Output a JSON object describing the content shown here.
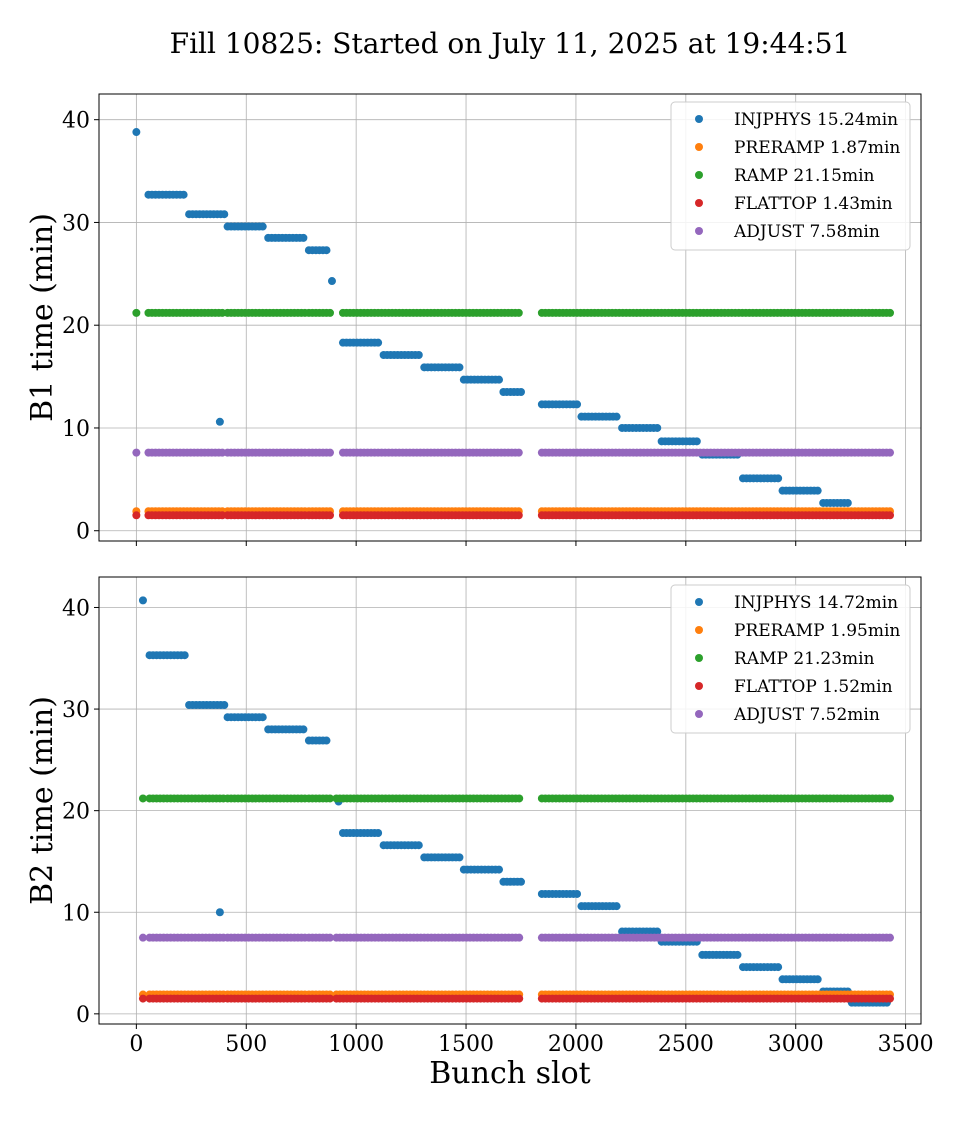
{
  "figure": {
    "title": "Fill 10825: Started on July 11, 2025 at 19:44:51",
    "xlabel": "Bunch slot"
  },
  "colors": {
    "INJPHYS": "#1f77b4",
    "PRERAMP": "#ff7f0e",
    "RAMP": "#2ca02c",
    "FLATTOP": "#d62728",
    "ADJUST": "#9467bd"
  },
  "chart_data": [
    {
      "type": "scatter",
      "ylabel": "B1 time (min)",
      "xlim": [
        -170,
        3570
      ],
      "ylim": [
        -1,
        42.5
      ],
      "xticks": [
        0,
        500,
        1000,
        1500,
        2000,
        2500,
        3000,
        3500
      ],
      "yticks": [
        0,
        10,
        20,
        30,
        40
      ],
      "xtick_labels_shown": false,
      "grid": true,
      "legend_position": "top-right",
      "series": [
        {
          "name": "INJPHYS 15.24min",
          "key": "INJPHYS",
          "points": [
            [
              0,
              38.8
            ],
            [
              380,
              10.6
            ],
            [
              890,
              24.3
            ]
          ],
          "runs": [
            [
              55,
              230,
              32.7
            ],
            [
              240,
              400,
              30.8
            ],
            [
              415,
              590,
              29.6
            ],
            [
              600,
              770,
              28.5
            ],
            [
              785,
              880,
              27.3
            ],
            [
              940,
              1110,
              18.3
            ],
            [
              1125,
              1290,
              17.1
            ],
            [
              1310,
              1475,
              15.9
            ],
            [
              1490,
              1660,
              14.7
            ],
            [
              1670,
              1750,
              13.5
            ],
            [
              1845,
              2010,
              12.3
            ],
            [
              2025,
              2195,
              11.1
            ],
            [
              2210,
              2380,
              10.0
            ],
            [
              2390,
              2560,
              8.7
            ],
            [
              2575,
              2745,
              7.4
            ],
            [
              2760,
              2925,
              5.1
            ],
            [
              2940,
              3110,
              3.9
            ],
            [
              3125,
              3245,
              2.7
            ]
          ]
        },
        {
          "name": "PRERAMP 1.87min",
          "key": "PRERAMP",
          "points": [
            [
              0,
              1.9
            ]
          ],
          "runs": [
            [
              55,
              400,
              1.9
            ],
            [
              415,
              770,
              1.9
            ],
            [
              785,
              890,
              1.9
            ],
            [
              940,
              1750,
              1.9
            ],
            [
              1845,
              3430,
              1.9
            ]
          ]
        },
        {
          "name": "RAMP 21.15min",
          "key": "RAMP",
          "points": [
            [
              0,
              21.2
            ]
          ],
          "runs": [
            [
              55,
              400,
              21.2
            ],
            [
              415,
              770,
              21.2
            ],
            [
              785,
              890,
              21.2
            ],
            [
              940,
              1750,
              21.2
            ],
            [
              1845,
              3430,
              21.2
            ]
          ]
        },
        {
          "name": "FLATTOP 1.43min",
          "key": "FLATTOP",
          "points": [
            [
              0,
              1.5
            ]
          ],
          "runs": [
            [
              55,
              400,
              1.5
            ],
            [
              415,
              770,
              1.5
            ],
            [
              785,
              890,
              1.5
            ],
            [
              940,
              1750,
              1.5
            ],
            [
              1845,
              3430,
              1.5
            ]
          ]
        },
        {
          "name": "ADJUST 7.58min",
          "key": "ADJUST",
          "points": [
            [
              0,
              7.6
            ]
          ],
          "runs": [
            [
              55,
              400,
              7.6
            ],
            [
              415,
              770,
              7.6
            ],
            [
              785,
              890,
              7.6
            ],
            [
              940,
              1750,
              7.6
            ],
            [
              1845,
              3430,
              7.6
            ]
          ]
        }
      ]
    },
    {
      "type": "scatter",
      "ylabel": "B2 time (min)",
      "xlim": [
        -170,
        3570
      ],
      "ylim": [
        -1,
        43
      ],
      "xticks": [
        0,
        500,
        1000,
        1500,
        2000,
        2500,
        3000,
        3500
      ],
      "yticks": [
        0,
        10,
        20,
        30,
        40
      ],
      "xtick_labels_shown": true,
      "grid": true,
      "legend_position": "top-right",
      "series": [
        {
          "name": "INJPHYS 14.72min",
          "key": "INJPHYS",
          "points": [
            [
              30,
              40.7
            ],
            [
              380,
              10.0
            ],
            [
              920,
              20.9
            ]
          ],
          "runs": [
            [
              60,
              230,
              35.3
            ],
            [
              240,
              400,
              30.4
            ],
            [
              415,
              590,
              29.2
            ],
            [
              600,
              770,
              28.0
            ],
            [
              785,
              880,
              26.9
            ],
            [
              940,
              1110,
              17.8
            ],
            [
              1125,
              1290,
              16.6
            ],
            [
              1310,
              1475,
              15.4
            ],
            [
              1490,
              1660,
              14.2
            ],
            [
              1670,
              1750,
              13.0
            ],
            [
              1845,
              2010,
              11.8
            ],
            [
              2025,
              2195,
              10.6
            ],
            [
              2210,
              2380,
              8.1
            ],
            [
              2390,
              2560,
              7.1
            ],
            [
              2575,
              2745,
              5.8
            ],
            [
              2760,
              2925,
              4.6
            ],
            [
              2940,
              3110,
              3.4
            ],
            [
              3125,
              3245,
              2.2
            ],
            [
              3255,
              3430,
              1.1
            ]
          ]
        },
        {
          "name": "PRERAMP 1.95min",
          "key": "PRERAMP",
          "points": [
            [
              30,
              1.9
            ]
          ],
          "runs": [
            [
              60,
              400,
              1.9
            ],
            [
              415,
              770,
              1.9
            ],
            [
              785,
              890,
              1.9
            ],
            [
              910,
              1750,
              1.9
            ],
            [
              1845,
              3430,
              1.9
            ]
          ]
        },
        {
          "name": "RAMP 21.23min",
          "key": "RAMP",
          "points": [
            [
              30,
              21.2
            ]
          ],
          "runs": [
            [
              60,
              400,
              21.2
            ],
            [
              415,
              770,
              21.2
            ],
            [
              785,
              890,
              21.2
            ],
            [
              910,
              1750,
              21.2
            ],
            [
              1845,
              3430,
              21.2
            ]
          ]
        },
        {
          "name": "FLATTOP 1.52min",
          "key": "FLATTOP",
          "points": [
            [
              30,
              1.5
            ]
          ],
          "runs": [
            [
              60,
              400,
              1.5
            ],
            [
              415,
              770,
              1.5
            ],
            [
              785,
              890,
              1.5
            ],
            [
              910,
              1750,
              1.5
            ],
            [
              1845,
              3430,
              1.5
            ]
          ]
        },
        {
          "name": "ADJUST 7.52min",
          "key": "ADJUST",
          "points": [
            [
              30,
              7.5
            ]
          ],
          "runs": [
            [
              60,
              400,
              7.5
            ],
            [
              415,
              770,
              7.5
            ],
            [
              785,
              890,
              7.5
            ],
            [
              910,
              1750,
              7.5
            ],
            [
              1845,
              3430,
              7.5
            ]
          ]
        }
      ]
    }
  ]
}
